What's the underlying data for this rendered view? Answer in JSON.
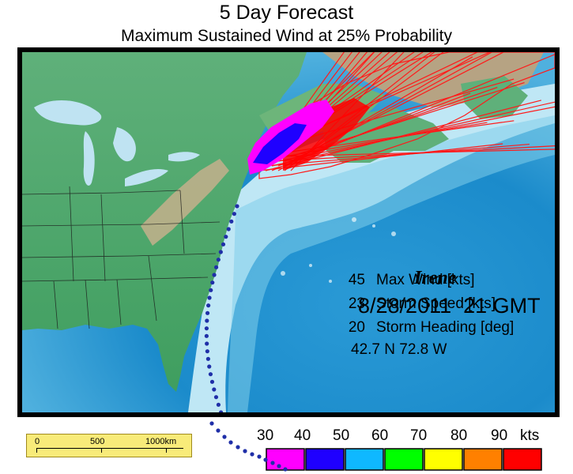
{
  "title": "5 Day Forecast",
  "subtitle": "Maximum Sustained Wind at 25% Probability",
  "storm": {
    "name": "Irene",
    "datetime": "8/28/2011  21 GMT",
    "max_wind_value": "45",
    "max_wind_label": "Max Wind [kts]",
    "speed_value": "23",
    "speed_label": "Storm Speed [kts]",
    "heading_value": "20",
    "heading_label": "Storm Heading [deg]",
    "position": "42.7 N  72.8 W"
  },
  "scale_bar": {
    "labels": [
      "0",
      "500",
      "1000km"
    ]
  },
  "legend": {
    "labels": [
      "30",
      "40",
      "50",
      "60",
      "70",
      "80",
      "90",
      "kts"
    ],
    "colors": [
      "#ff00ff",
      "#1f00ff",
      "#0fb8ff",
      "#00ff00",
      "#ffff00",
      "#ff8000",
      "#ff0000"
    ]
  },
  "colors": {
    "ocean_deep": "#1e8ccd",
    "ocean_shallow": "#bfe7f5",
    "land_low": "#4aa96c",
    "land_high": "#b7a27f",
    "track": "#1f2fa8"
  }
}
